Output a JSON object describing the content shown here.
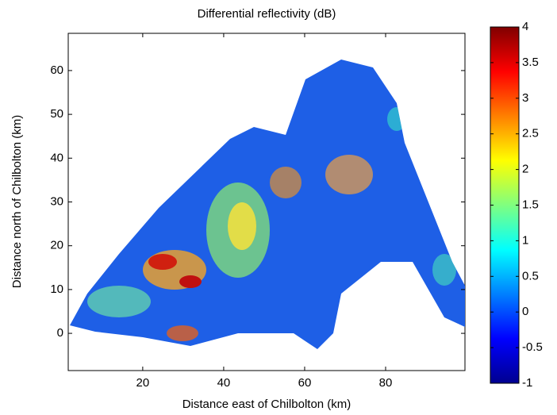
{
  "chart_data": {
    "type": "heatmap",
    "title": "Differential reflectivity (dB)",
    "x_label": "Distance east of Chilbolton (km)",
    "y_label": "Distance north of Chilbolton (km)",
    "xlim": [
      1.6,
      99.6
    ],
    "xticks": [
      20,
      40,
      60,
      80
    ],
    "ylim": [
      -8.5,
      68.5
    ],
    "yticks": [
      0,
      10,
      20,
      30,
      40,
      50,
      60
    ],
    "colormap": "jet",
    "colorbar": {
      "clim": [
        -1,
        4
      ],
      "ticks": [
        4,
        3.5,
        3,
        2.5,
        2,
        1.5,
        1,
        0.5,
        0,
        -0.5,
        -1
      ]
    }
  }
}
